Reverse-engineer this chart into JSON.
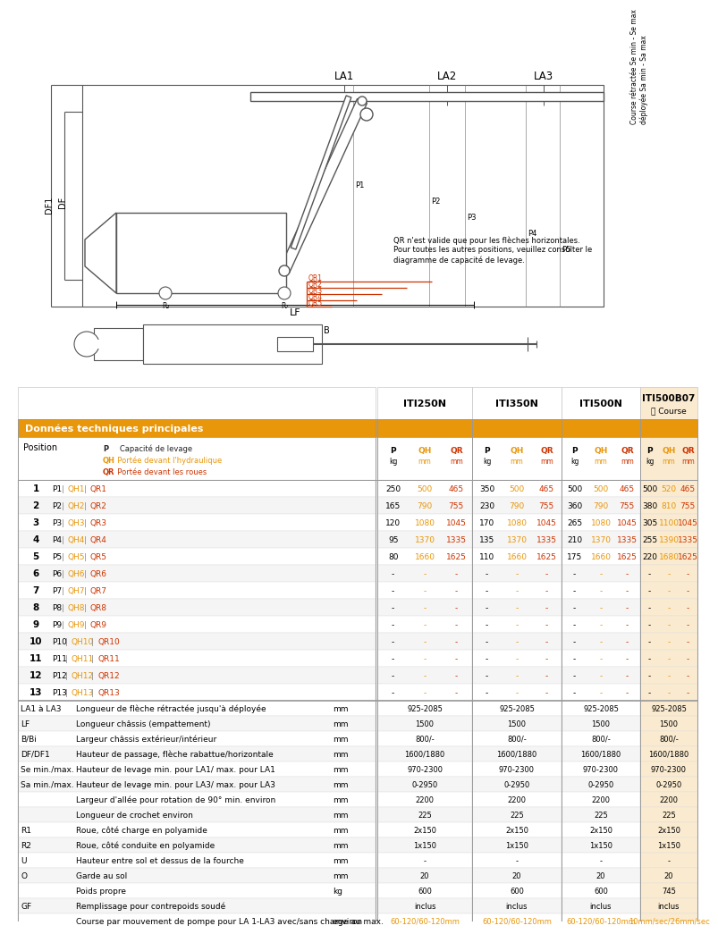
{
  "title_col1": "ITI250N",
  "title_col2": "ITI350N",
  "title_col3": "ITI500N",
  "title_col4": "ITI500B07",
  "title_col4_sub": "Course",
  "section_header": "Données techniques principales",
  "orange_header": "#E8960A",
  "orange_text": "#E8960A",
  "red_text": "#CC3300",
  "col_bg_last": "#FAEBD0",
  "light_gray": "#F5F5F5",
  "dark_text": "#222222",
  "position_label": "Position",
  "legend_lines": [
    {
      "prefix": "P",
      "text": "   Capacité de levage",
      "color": "#222222"
    },
    {
      "prefix": "QH",
      "text": "  Portée devant l'hydraulique",
      "color": "#E8960A"
    },
    {
      "prefix": "QR",
      "text": "  Portée devant les roues",
      "color": "#CC3300"
    }
  ],
  "positions": [
    {
      "num": "1",
      "p_label": "P1",
      "qh_label": "QH1",
      "qr_label": "QR1",
      "col1": [
        "250",
        "500",
        "465"
      ],
      "col2": [
        "350",
        "500",
        "465"
      ],
      "col3": [
        "500",
        "500",
        "465"
      ],
      "col4": [
        "500",
        "520",
        "465"
      ]
    },
    {
      "num": "2",
      "p_label": "P2",
      "qh_label": "QH2",
      "qr_label": "QR2",
      "col1": [
        "165",
        "790",
        "755"
      ],
      "col2": [
        "230",
        "790",
        "755"
      ],
      "col3": [
        "360",
        "790",
        "755"
      ],
      "col4": [
        "380",
        "810",
        "755"
      ]
    },
    {
      "num": "3",
      "p_label": "P3",
      "qh_label": "QH3",
      "qr_label": "QR3",
      "col1": [
        "120",
        "1080",
        "1045"
      ],
      "col2": [
        "170",
        "1080",
        "1045"
      ],
      "col3": [
        "265",
        "1080",
        "1045"
      ],
      "col4": [
        "305",
        "1100",
        "1045"
      ]
    },
    {
      "num": "4",
      "p_label": "P4",
      "qh_label": "QH4",
      "qr_label": "QR4",
      "col1": [
        "95",
        "1370",
        "1335"
      ],
      "col2": [
        "135",
        "1370",
        "1335"
      ],
      "col3": [
        "210",
        "1370",
        "1335"
      ],
      "col4": [
        "255",
        "1390",
        "1335"
      ]
    },
    {
      "num": "5",
      "p_label": "P5",
      "qh_label": "QH5",
      "qr_label": "QR5",
      "col1": [
        "80",
        "1660",
        "1625"
      ],
      "col2": [
        "110",
        "1660",
        "1625"
      ],
      "col3": [
        "175",
        "1660",
        "1625"
      ],
      "col4": [
        "220",
        "1680",
        "1625"
      ]
    },
    {
      "num": "6",
      "p_label": "P6",
      "qh_label": "QH6",
      "qr_label": "QR6",
      "col1": [
        "-",
        "-",
        "-"
      ],
      "col2": [
        "-",
        "-",
        "-"
      ],
      "col3": [
        "-",
        "-",
        "-"
      ],
      "col4": [
        "-",
        "-",
        "-"
      ]
    },
    {
      "num": "7",
      "p_label": "P7",
      "qh_label": "QH7",
      "qr_label": "QR7",
      "col1": [
        "-",
        "-",
        "-"
      ],
      "col2": [
        "-",
        "-",
        "-"
      ],
      "col3": [
        "-",
        "-",
        "-"
      ],
      "col4": [
        "-",
        "-",
        "-"
      ]
    },
    {
      "num": "8",
      "p_label": "P8",
      "qh_label": "QH8",
      "qr_label": "QR8",
      "col1": [
        "-",
        "-",
        "-"
      ],
      "col2": [
        "-",
        "-",
        "-"
      ],
      "col3": [
        "-",
        "-",
        "-"
      ],
      "col4": [
        "-",
        "-",
        "-"
      ]
    },
    {
      "num": "9",
      "p_label": "P9",
      "qh_label": "QH9",
      "qr_label": "QR9",
      "col1": [
        "-",
        "-",
        "-"
      ],
      "col2": [
        "-",
        "-",
        "-"
      ],
      "col3": [
        "-",
        "-",
        "-"
      ],
      "col4": [
        "-",
        "-",
        "-"
      ]
    },
    {
      "num": "10",
      "p_label": "P10",
      "qh_label": "QH10",
      "qr_label": "QR10",
      "col1": [
        "-",
        "-",
        "-"
      ],
      "col2": [
        "-",
        "-",
        "-"
      ],
      "col3": [
        "-",
        "-",
        "-"
      ],
      "col4": [
        "-",
        "-",
        "-"
      ]
    },
    {
      "num": "11",
      "p_label": "P11",
      "qh_label": "QH11",
      "qr_label": "QR11",
      "col1": [
        "-",
        "-",
        "-"
      ],
      "col2": [
        "-",
        "-",
        "-"
      ],
      "col3": [
        "-",
        "-",
        "-"
      ],
      "col4": [
        "-",
        "-",
        "-"
      ]
    },
    {
      "num": "12",
      "p_label": "P12",
      "qh_label": "QH12",
      "qr_label": "QR12",
      "col1": [
        "-",
        "-",
        "-"
      ],
      "col2": [
        "-",
        "-",
        "-"
      ],
      "col3": [
        "-",
        "-",
        "-"
      ],
      "col4": [
        "-",
        "-",
        "-"
      ]
    },
    {
      "num": "13",
      "p_label": "P13",
      "qh_label": "QH13",
      "qr_label": "QR13",
      "col1": [
        "-",
        "-",
        "-"
      ],
      "col2": [
        "-",
        "-",
        "-"
      ],
      "col3": [
        "-",
        "-",
        "-"
      ],
      "col4": [
        "-",
        "-",
        "-"
      ]
    }
  ],
  "specs": [
    {
      "label1": "LA1 à LA3",
      "label2": "Longueur de flèche rétractée jusqu'à déployée",
      "unit": "mm",
      "v1": "925-2085",
      "v2": "925-2085",
      "v3": "925-2085",
      "v4": "925-2085",
      "last_orange": false
    },
    {
      "label1": "LF",
      "label2": "Longueur châssis (empattement)",
      "unit": "mm",
      "v1": "1500",
      "v2": "1500",
      "v3": "1500",
      "v4": "1500",
      "last_orange": false
    },
    {
      "label1": "B/Bi",
      "label2": "Largeur châssis extérieur/intérieur",
      "unit": "mm",
      "v1": "800/-",
      "v2": "800/-",
      "v3": "800/-",
      "v4": "800/-",
      "last_orange": false
    },
    {
      "label1": "DF/DF1",
      "label2": "Hauteur de passage, flèche rabattue/horizontale",
      "unit": "mm",
      "v1": "1600/1880",
      "v2": "1600/1880",
      "v3": "1600/1880",
      "v4": "1600/1880",
      "last_orange": false
    },
    {
      "label1": "Se min./max.",
      "label2": "Hauteur de levage min. pour LA1/ max. pour LA1",
      "unit": "mm",
      "v1": "970-2300",
      "v2": "970-2300",
      "v3": "970-2300",
      "v4": "970-2300",
      "last_orange": false
    },
    {
      "label1": "Sa min./max.",
      "label2": "Hauteur de levage min. pour LA3/ max. pour LA3",
      "unit": "mm",
      "v1": "0-2950",
      "v2": "0-2950",
      "v3": "0-2950",
      "v4": "0-2950",
      "last_orange": false
    },
    {
      "label1": "",
      "label2": "Largeur d'allée pour rotation de 90° min. environ",
      "unit": "mm",
      "v1": "2200",
      "v2": "2200",
      "v3": "2200",
      "v4": "2200",
      "last_orange": false
    },
    {
      "label1": "",
      "label2": "Longueur de crochet environ",
      "unit": "mm",
      "v1": "225",
      "v2": "225",
      "v3": "225",
      "v4": "225",
      "last_orange": false
    },
    {
      "label1": "R1",
      "label2": "Roue, côté charge en polyamide",
      "unit": "mm",
      "v1": "2x150",
      "v2": "2x150",
      "v3": "2x150",
      "v4": "2x150",
      "last_orange": false
    },
    {
      "label1": "R2",
      "label2": "Roue, côté conduite en polyamide",
      "unit": "mm",
      "v1": "1x150",
      "v2": "1x150",
      "v3": "1x150",
      "v4": "1x150",
      "last_orange": false
    },
    {
      "label1": "U",
      "label2": "Hauteur entre sol et dessus de la fourche",
      "unit": "mm",
      "v1": "-",
      "v2": "-",
      "v3": "-",
      "v4": "-",
      "last_orange": false
    },
    {
      "label1": "O",
      "label2": "Garde au sol",
      "unit": "mm",
      "v1": "20",
      "v2": "20",
      "v3": "20",
      "v4": "20",
      "last_orange": false
    },
    {
      "label1": "",
      "label2": "Poids propre",
      "unit": "kg",
      "v1": "600",
      "v2": "600",
      "v3": "600",
      "v4": "745",
      "last_orange": false
    },
    {
      "label1": "GF",
      "label2": "Remplissage pour contrepoids soudé",
      "unit": "",
      "v1": "inclus",
      "v2": "inclus",
      "v3": "inclus",
      "v4": "inclus",
      "last_orange": false
    },
    {
      "label1": "",
      "label2": "Course par mouvement de pompe pour LA 1-LA3 avec/sans charge au max.",
      "unit": "environ",
      "v1": "60-120/60-120mm",
      "v2": "60-120/60-120mm",
      "v3": "60-120/60-120mm",
      "v4": "10mm/sec/26mm/sec",
      "last_orange": true
    }
  ],
  "diagram_note": [
    "QR n'est valide que pour les flèches horizontales.",
    "Pour toutes les autres positions, veuillez consulter le",
    "diagramme de capacité de levage."
  ]
}
